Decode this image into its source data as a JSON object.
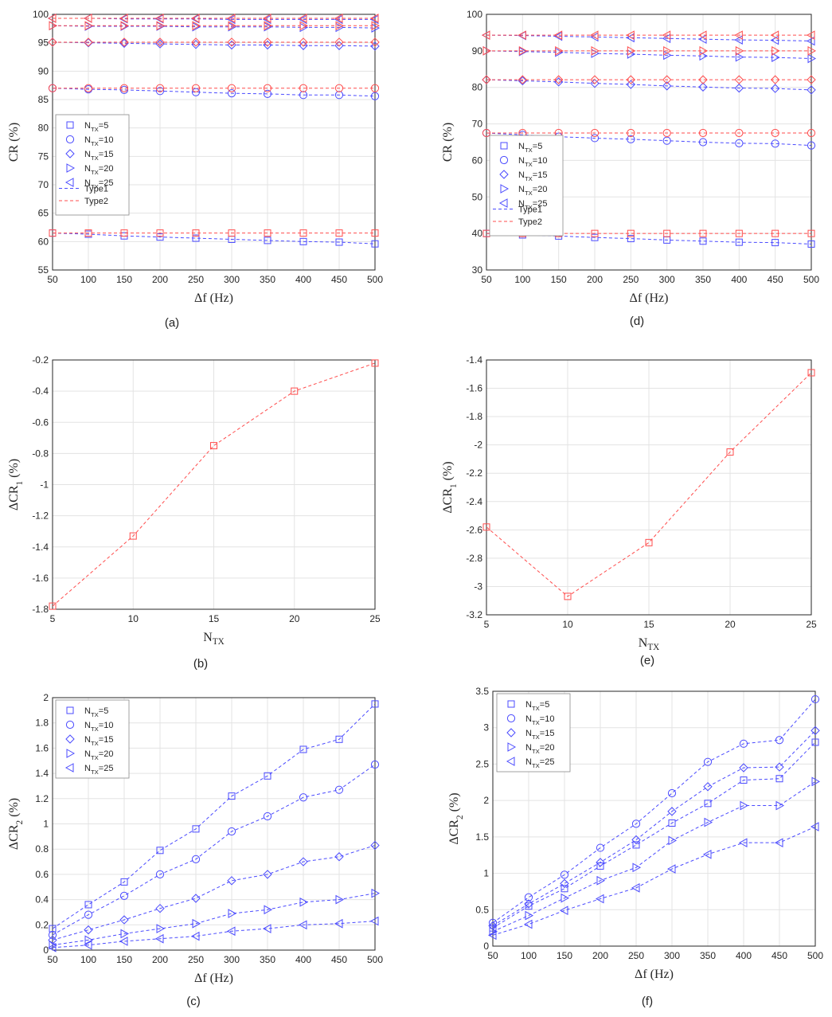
{
  "figure": {
    "legend_entries": [
      "N_TX=5",
      "N_TX=10",
      "N_TX=15",
      "N_TX=20",
      "N_TX=25"
    ],
    "line_types": [
      "Type1",
      "Type2"
    ]
  },
  "colors": {
    "type1": "#4b4bff",
    "type2": "#ff4d4d",
    "axis": "#262626",
    "grid": "#e3e3e3"
  },
  "chart_data": [
    {
      "id": "a",
      "panel_label": "(a)",
      "type": "line",
      "xlabel": "Δf (Hz)",
      "ylabel": "CR (%)",
      "xlim": [
        50,
        500
      ],
      "ylim": [
        55,
        100
      ],
      "xticks": [
        50,
        100,
        150,
        200,
        250,
        300,
        350,
        400,
        450,
        500
      ],
      "yticks": [
        55,
        60,
        65,
        70,
        75,
        80,
        85,
        90,
        95,
        100
      ],
      "x": [
        50,
        100,
        150,
        200,
        250,
        300,
        350,
        400,
        450,
        500
      ],
      "legend": "inside-left",
      "series": [
        {
          "name": "N_TX=5, Type1",
          "marker": "square",
          "style": "type1",
          "values": [
            61.5,
            61.3,
            61.0,
            60.8,
            60.6,
            60.4,
            60.2,
            60.0,
            59.9,
            59.6
          ]
        },
        {
          "name": "N_TX=5, Type2",
          "marker": "square",
          "style": "type2",
          "values": [
            61.5,
            61.5,
            61.5,
            61.5,
            61.5,
            61.5,
            61.5,
            61.5,
            61.5,
            61.5
          ]
        },
        {
          "name": "N_TX=10, Type1",
          "marker": "circle",
          "style": "type1",
          "values": [
            87.0,
            86.8,
            86.7,
            86.5,
            86.3,
            86.1,
            86.0,
            85.8,
            85.8,
            85.6
          ]
        },
        {
          "name": "N_TX=10, Type2",
          "marker": "circle",
          "style": "type2",
          "values": [
            87.0,
            87.0,
            87.0,
            87.0,
            87.0,
            87.0,
            87.0,
            87.0,
            87.0,
            87.0
          ]
        },
        {
          "name": "N_TX=15, Type1",
          "marker": "diamond",
          "style": "type1",
          "values": [
            95.1,
            95.0,
            94.9,
            94.8,
            94.7,
            94.6,
            94.6,
            94.5,
            94.5,
            94.4
          ]
        },
        {
          "name": "N_TX=15, Type2",
          "marker": "diamond",
          "style": "type2",
          "values": [
            95.1,
            95.1,
            95.1,
            95.1,
            95.1,
            95.1,
            95.1,
            95.1,
            95.1,
            95.1
          ]
        },
        {
          "name": "N_TX=20, Type1",
          "marker": "tri-right",
          "style": "type1",
          "values": [
            98.0,
            97.9,
            97.9,
            97.9,
            97.8,
            97.8,
            97.8,
            97.7,
            97.7,
            97.6
          ]
        },
        {
          "name": "N_TX=20, Type2",
          "marker": "tri-right",
          "style": "type2",
          "values": [
            98.0,
            98.0,
            98.0,
            98.0,
            98.0,
            98.0,
            98.0,
            98.0,
            98.0,
            98.0
          ]
        },
        {
          "name": "N_TX=25, Type1",
          "marker": "tri-left",
          "style": "type1",
          "values": [
            99.3,
            99.3,
            99.2,
            99.2,
            99.2,
            99.1,
            99.1,
            99.1,
            99.1,
            99.1
          ]
        },
        {
          "name": "N_TX=25, Type2",
          "marker": "tri-left",
          "style": "type2",
          "values": [
            99.3,
            99.3,
            99.3,
            99.3,
            99.3,
            99.3,
            99.3,
            99.3,
            99.3,
            99.3
          ]
        }
      ]
    },
    {
      "id": "d",
      "panel_label": "(d)",
      "type": "line",
      "xlabel": "Δf (Hz)",
      "ylabel": "CR (%)",
      "xlim": [
        50,
        500
      ],
      "ylim": [
        30,
        100
      ],
      "xticks": [
        50,
        100,
        150,
        200,
        250,
        300,
        350,
        400,
        450,
        500
      ],
      "yticks": [
        30,
        40,
        50,
        60,
        70,
        80,
        90,
        100
      ],
      "x": [
        50,
        100,
        150,
        200,
        250,
        300,
        350,
        400,
        450,
        500
      ],
      "legend": "inside-left",
      "series": [
        {
          "name": "N_TX=5, Type1",
          "marker": "square",
          "style": "type1",
          "values": [
            40.0,
            39.6,
            39.3,
            38.9,
            38.6,
            38.2,
            37.9,
            37.6,
            37.5,
            37.1
          ]
        },
        {
          "name": "N_TX=5, Type2",
          "marker": "square",
          "style": "type2",
          "values": [
            40.0,
            40.0,
            40.0,
            40.0,
            40.0,
            40.0,
            40.0,
            40.0,
            40.0,
            40.0
          ]
        },
        {
          "name": "N_TX=10, Type1",
          "marker": "circle",
          "style": "type1",
          "values": [
            67.5,
            67.0,
            66.5,
            66.1,
            65.8,
            65.4,
            65.0,
            64.7,
            64.6,
            64.1
          ]
        },
        {
          "name": "N_TX=10, Type2",
          "marker": "circle",
          "style": "type2",
          "values": [
            67.5,
            67.5,
            67.5,
            67.5,
            67.5,
            67.5,
            67.5,
            67.5,
            67.5,
            67.5
          ]
        },
        {
          "name": "N_TX=15, Type1",
          "marker": "diamond",
          "style": "type1",
          "values": [
            82.1,
            81.8,
            81.5,
            81.1,
            80.8,
            80.4,
            80.1,
            79.8,
            79.7,
            79.3
          ]
        },
        {
          "name": "N_TX=15, Type2",
          "marker": "diamond",
          "style": "type2",
          "values": [
            82.1,
            82.1,
            82.1,
            82.1,
            82.1,
            82.1,
            82.1,
            82.1,
            82.1,
            82.1
          ]
        },
        {
          "name": "N_TX=20, Type1",
          "marker": "tri-right",
          "style": "type1",
          "values": [
            90.0,
            89.8,
            89.6,
            89.3,
            89.1,
            88.8,
            88.6,
            88.3,
            88.2,
            87.9
          ]
        },
        {
          "name": "N_TX=20, Type2",
          "marker": "tri-right",
          "style": "type2",
          "values": [
            90.0,
            90.0,
            90.0,
            90.0,
            90.0,
            90.0,
            90.0,
            90.0,
            90.0,
            90.0
          ]
        },
        {
          "name": "N_TX=25, Type1",
          "marker": "tri-left",
          "style": "type1",
          "values": [
            94.3,
            94.2,
            94.0,
            93.8,
            93.6,
            93.4,
            93.2,
            93.0,
            92.9,
            92.7
          ]
        },
        {
          "name": "N_TX=25, Type2",
          "marker": "tri-left",
          "style": "type2",
          "values": [
            94.3,
            94.3,
            94.3,
            94.3,
            94.3,
            94.3,
            94.3,
            94.3,
            94.3,
            94.3
          ]
        }
      ]
    },
    {
      "id": "b",
      "panel_label": "(b)",
      "type": "line",
      "xlabel": "N_TX",
      "ylabel": "ΔCR_1 (%)",
      "xlim": [
        5,
        25
      ],
      "ylim": [
        -1.8,
        -0.2
      ],
      "xticks": [
        5,
        10,
        15,
        20,
        25
      ],
      "yticks": [
        -1.8,
        -1.6,
        -1.4,
        -1.2,
        -1,
        -0.8,
        -0.6,
        -0.4,
        -0.2
      ],
      "x": [
        5,
        10,
        15,
        20,
        25
      ],
      "legend": "none",
      "series": [
        {
          "name": "ΔCR_1",
          "marker": "square",
          "style": "type2",
          "values": [
            -1.78,
            -1.33,
            -0.75,
            -0.4,
            -0.22
          ]
        }
      ]
    },
    {
      "id": "e",
      "panel_label": "(e)",
      "type": "line",
      "xlabel": "N_TX",
      "ylabel": "ΔCR_1 (%)",
      "xlim": [
        5,
        25
      ],
      "ylim": [
        -3.2,
        -1.4
      ],
      "xticks": [
        5,
        10,
        15,
        20,
        25
      ],
      "yticks": [
        -3.2,
        -3,
        -2.8,
        -2.6,
        -2.4,
        -2.2,
        -2,
        -1.8,
        -1.6,
        -1.4
      ],
      "x": [
        5,
        10,
        15,
        20,
        25
      ],
      "legend": "none",
      "series": [
        {
          "name": "ΔCR_1",
          "marker": "square",
          "style": "type2",
          "values": [
            -2.58,
            -3.07,
            -2.69,
            -2.05,
            -1.49
          ]
        }
      ]
    },
    {
      "id": "c",
      "panel_label": "(c)",
      "type": "line",
      "xlabel": "Δf (Hz)",
      "ylabel": "ΔCR_2 (%)",
      "xlim": [
        50,
        500
      ],
      "ylim": [
        0,
        2
      ],
      "xticks": [
        50,
        100,
        150,
        200,
        250,
        300,
        350,
        400,
        450,
        500
      ],
      "yticks": [
        0,
        0.2,
        0.4,
        0.6,
        0.8,
        1,
        1.2,
        1.4,
        1.6,
        1.8,
        2
      ],
      "x": [
        50,
        100,
        150,
        200,
        250,
        300,
        350,
        400,
        450,
        500
      ],
      "legend": "top-left",
      "series": [
        {
          "name": "N_TX=5",
          "marker": "square",
          "style": "type1",
          "values": [
            0.17,
            0.36,
            0.54,
            0.79,
            0.96,
            1.22,
            1.38,
            1.59,
            1.67,
            1.95
          ]
        },
        {
          "name": "N_TX=10",
          "marker": "circle",
          "style": "type1",
          "values": [
            0.12,
            0.28,
            0.43,
            0.6,
            0.72,
            0.94,
            1.06,
            1.21,
            1.27,
            1.47
          ]
        },
        {
          "name": "N_TX=15",
          "marker": "diamond",
          "style": "type1",
          "values": [
            0.08,
            0.16,
            0.24,
            0.33,
            0.41,
            0.55,
            0.6,
            0.7,
            0.74,
            0.83
          ]
        },
        {
          "name": "N_TX=20",
          "marker": "tri-right",
          "style": "type1",
          "values": [
            0.04,
            0.08,
            0.13,
            0.17,
            0.21,
            0.29,
            0.32,
            0.38,
            0.4,
            0.45
          ]
        },
        {
          "name": "N_TX=25",
          "marker": "tri-left",
          "style": "type1",
          "values": [
            0.02,
            0.04,
            0.07,
            0.09,
            0.11,
            0.15,
            0.17,
            0.2,
            0.21,
            0.23
          ]
        }
      ]
    },
    {
      "id": "f",
      "panel_label": "(f)",
      "type": "line",
      "xlabel": "Δf (Hz)",
      "ylabel": "ΔCR_2 (%)",
      "xlim": [
        50,
        500
      ],
      "ylim": [
        0,
        3.5
      ],
      "xticks": [
        50,
        100,
        150,
        200,
        250,
        300,
        350,
        400,
        450,
        500
      ],
      "yticks": [
        0,
        0.5,
        1,
        1.5,
        2,
        2.5,
        3,
        3.5
      ],
      "x": [
        50,
        100,
        150,
        200,
        250,
        300,
        350,
        400,
        450,
        500
      ],
      "legend": "top-left",
      "series": [
        {
          "name": "N_TX=5",
          "marker": "square",
          "style": "type1",
          "values": [
            0.25,
            0.55,
            0.79,
            1.1,
            1.39,
            1.69,
            1.96,
            2.28,
            2.3,
            2.8
          ]
        },
        {
          "name": "N_TX=10",
          "marker": "circle",
          "style": "type1",
          "values": [
            0.32,
            0.67,
            0.98,
            1.35,
            1.68,
            2.1,
            2.53,
            2.78,
            2.83,
            3.39
          ]
        },
        {
          "name": "N_TX=15",
          "marker": "diamond",
          "style": "type1",
          "values": [
            0.28,
            0.58,
            0.86,
            1.15,
            1.46,
            1.85,
            2.19,
            2.45,
            2.46,
            2.96
          ]
        },
        {
          "name": "N_TX=20",
          "marker": "tri-right",
          "style": "type1",
          "values": [
            0.2,
            0.42,
            0.66,
            0.9,
            1.08,
            1.45,
            1.7,
            1.93,
            1.93,
            2.26
          ]
        },
        {
          "name": "N_TX=25",
          "marker": "tri-left",
          "style": "type1",
          "values": [
            0.15,
            0.3,
            0.49,
            0.65,
            0.8,
            1.06,
            1.26,
            1.42,
            1.42,
            1.64
          ]
        }
      ]
    }
  ]
}
